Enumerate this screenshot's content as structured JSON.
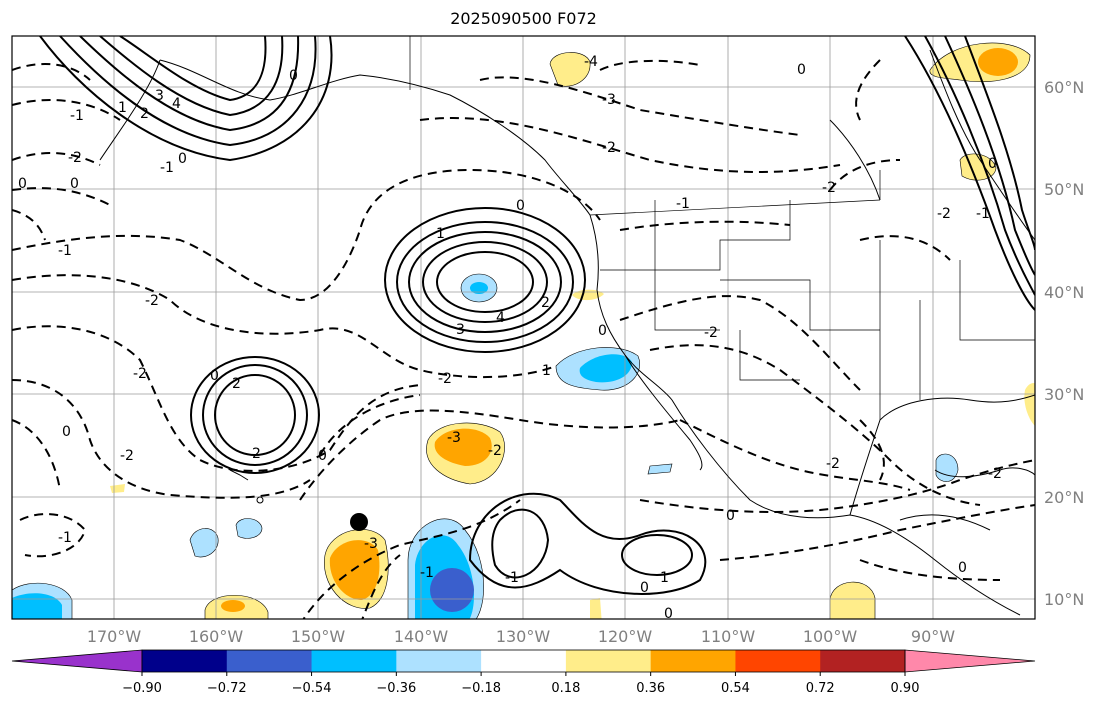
{
  "title": "2025090500 F072",
  "lat_labels": [
    "60°N",
    "50°N",
    "40°N",
    "30°N",
    "20°N",
    "10°N"
  ],
  "lon_labels": [
    "170°W",
    "160°W",
    "150°W",
    "140°W",
    "130°W",
    "120°W",
    "110°W",
    "100°W",
    "90°W"
  ],
  "colorbar": {
    "colors": [
      "#9932CC",
      "#00008B",
      "#3A5FCD",
      "#00BFFF",
      "#ADE1FF",
      "#FFFFFF",
      "#FFED8A",
      "#FFA500",
      "#FF4500",
      "#B22222",
      "#FF88AA"
    ],
    "tick_labels": [
      "−0.90",
      "−0.72",
      "−0.54",
      "−0.36",
      "−0.18",
      "0.18",
      "0.36",
      "0.54",
      "0.72",
      "0.90"
    ]
  },
  "contour_labels": [
    "0",
    "1",
    "2",
    "3",
    "4",
    "-4",
    "-3",
    "-2",
    "-1",
    "0",
    "0",
    "-1",
    "-2",
    "-2",
    "-1",
    "0",
    "0",
    "-2",
    "-1",
    "0",
    "1",
    "2",
    "3",
    "4",
    "2",
    "-2",
    "-3",
    "-2",
    "0",
    "2",
    "0",
    "-2",
    "-1",
    "-2",
    "1",
    "0",
    "0",
    "-1",
    "0",
    "1",
    "0",
    "0",
    "-1",
    "0",
    "-2",
    "-2",
    "0",
    "-1",
    "-2",
    "-3",
    "-2"
  ],
  "marker": "cyclone-position-dot"
}
